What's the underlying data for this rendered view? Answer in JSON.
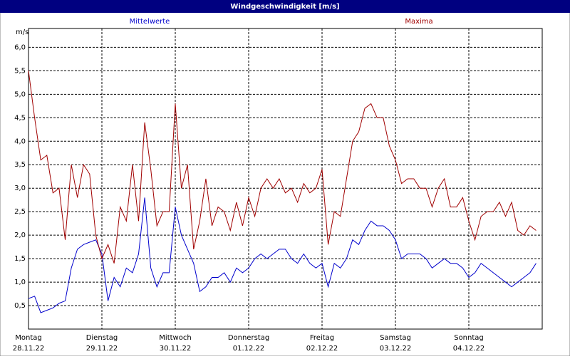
{
  "chart_data": {
    "type": "line",
    "title": "Windgeschwindigkeit [m/s]",
    "y_unit": "m/s",
    "x": [
      0,
      2,
      4,
      6,
      8,
      10,
      12,
      14,
      16,
      18,
      20,
      22,
      24,
      26,
      28,
      30,
      32,
      34,
      36,
      38,
      40,
      42,
      44,
      46,
      48,
      50,
      52,
      54,
      56,
      58,
      60,
      62,
      64,
      66,
      68,
      70,
      72,
      74,
      76,
      78,
      80,
      82,
      84,
      86,
      88,
      90,
      92,
      94,
      96,
      98,
      100,
      102,
      104,
      106,
      108,
      110,
      112,
      114,
      116,
      118,
      120,
      122,
      124,
      126,
      128,
      130,
      132,
      134,
      136,
      138,
      140,
      142,
      144,
      146,
      148,
      150,
      152,
      154,
      156,
      158,
      160,
      162,
      164,
      166
    ],
    "series": [
      {
        "name": "Mittelwerte",
        "color": "#0000cc",
        "values": [
          0.65,
          0.7,
          0.35,
          0.4,
          0.45,
          0.55,
          0.6,
          1.3,
          1.7,
          1.8,
          1.85,
          1.9,
          1.6,
          0.6,
          1.1,
          0.9,
          1.3,
          1.2,
          1.6,
          2.8,
          1.3,
          0.9,
          1.2,
          1.2,
          2.6,
          2.0,
          1.7,
          1.4,
          0.8,
          0.9,
          1.1,
          1.1,
          1.2,
          1.0,
          1.3,
          1.2,
          1.3,
          1.5,
          1.6,
          1.5,
          1.6,
          1.7,
          1.7,
          1.5,
          1.4,
          1.6,
          1.4,
          1.3,
          1.4,
          0.9,
          1.4,
          1.3,
          1.5,
          1.9,
          1.8,
          2.1,
          2.3,
          2.2,
          2.2,
          2.1,
          1.9,
          1.5,
          1.6,
          1.6,
          1.6,
          1.5,
          1.3,
          1.4,
          1.5,
          1.4,
          1.4,
          1.3,
          1.1,
          1.2,
          1.4,
          1.3,
          1.2,
          1.1,
          1.0,
          0.9,
          1.0,
          1.1,
          1.2,
          1.4
        ]
      },
      {
        "name": "Maxima",
        "color": "#a00000",
        "values": [
          5.5,
          4.5,
          3.6,
          3.7,
          2.9,
          3.0,
          1.9,
          3.5,
          2.8,
          3.5,
          3.3,
          2.0,
          1.5,
          1.8,
          1.4,
          2.6,
          2.3,
          3.5,
          2.3,
          4.4,
          3.4,
          2.2,
          2.5,
          2.5,
          4.8,
          3.0,
          3.5,
          1.7,
          2.3,
          3.2,
          2.2,
          2.6,
          2.5,
          2.1,
          2.7,
          2.2,
          2.8,
          2.4,
          3.0,
          3.2,
          3.0,
          3.2,
          2.9,
          3.0,
          2.7,
          3.1,
          2.9,
          3.0,
          3.4,
          1.8,
          2.5,
          2.4,
          3.2,
          4.0,
          4.2,
          4.7,
          4.8,
          4.5,
          4.5,
          3.9,
          3.6,
          3.1,
          3.2,
          3.2,
          3.0,
          3.0,
          2.6,
          3.0,
          3.2,
          2.6,
          2.6,
          2.8,
          2.3,
          1.9,
          2.4,
          2.5,
          2.5,
          2.7,
          2.4,
          2.7,
          2.1,
          2.0,
          2.2,
          2.1
        ]
      }
    ],
    "xlim": [
      0,
      168
    ],
    "xticks": [
      {
        "value": 0,
        "label": "Montag"
      },
      {
        "value": 24,
        "label": "Dienstag"
      },
      {
        "value": 48,
        "label": "Mittwoch"
      },
      {
        "value": 72,
        "label": "Donnerstag"
      },
      {
        "value": 96,
        "label": "Freitag"
      },
      {
        "value": 120,
        "label": "Samstag"
      },
      {
        "value": 144,
        "label": "Sonntag"
      }
    ],
    "xtick_dates": [
      "28.11.22",
      "29.11.22",
      "30.11.22",
      "01.12.22",
      "02.12.22",
      "03.12.22",
      "04.12.22"
    ],
    "ylim": [
      0,
      6.4
    ],
    "yticks": [
      {
        "value": 0.5,
        "label": "0,5"
      },
      {
        "value": 1,
        "label": "1,0"
      },
      {
        "value": 1.5,
        "label": "1,5"
      },
      {
        "value": 2,
        "label": "2,0"
      },
      {
        "value": 2.5,
        "label": "2,5"
      },
      {
        "value": 3,
        "label": "3,0"
      },
      {
        "value": 3.5,
        "label": "3,5"
      },
      {
        "value": 4,
        "label": "4,0"
      },
      {
        "value": 4.5,
        "label": "4,5"
      },
      {
        "value": 5,
        "label": "5,0"
      },
      {
        "value": 5.5,
        "label": "5,5"
      },
      {
        "value": 6,
        "label": "6,0"
      }
    ],
    "grid": true
  }
}
